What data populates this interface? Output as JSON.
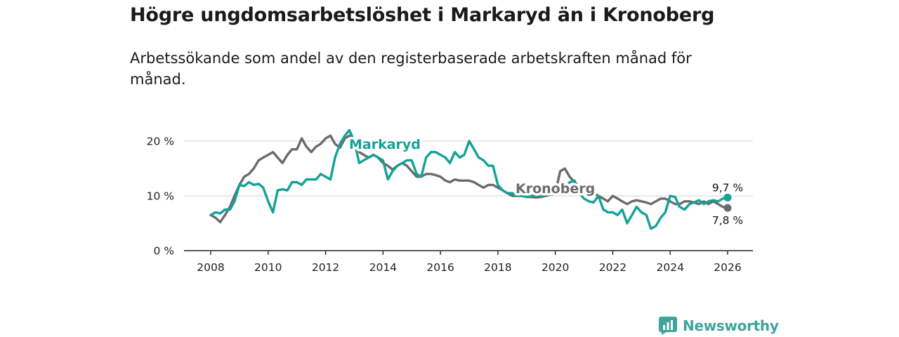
{
  "title": "Högre ungdomsarbetslöshet i Markaryd än i Kronoberg",
  "subtitle": "Arbetssökande som andel av den registerbaserade arbetskraften månad för månad.",
  "brand": "Newsworthy",
  "colors": {
    "markaryd": "#13a297",
    "kronoberg": "#6b6a6e",
    "grid": "#dcdcdc",
    "axis": "#222222",
    "brand": "#3ea59b"
  },
  "chart_data": {
    "type": "line",
    "title": "Högre ungdomsarbetslöshet i Markaryd än i Kronoberg",
    "xlabel": "",
    "ylabel": "",
    "xlim": [
      2007.5,
      2026.7
    ],
    "ylim": [
      0,
      20
    ],
    "x_ticks": [
      2008,
      2010,
      2012,
      2014,
      2016,
      2018,
      2020,
      2022,
      2024,
      2026
    ],
    "x_tick_labels": [
      "2008",
      "2010",
      "2012",
      "2014",
      "2016",
      "2018",
      "2020",
      "2022",
      "2024",
      "2026"
    ],
    "y_ticks": [
      0,
      10,
      20
    ],
    "y_tick_labels": [
      "0 %",
      "10 %",
      "20 %"
    ],
    "grid": true,
    "series": [
      {
        "name": "Markaryd",
        "label": "Markaryd",
        "end_label": "9,7 %",
        "x": [
          2008.0,
          2008.17,
          2008.33,
          2008.5,
          2008.67,
          2008.83,
          2009.0,
          2009.17,
          2009.33,
          2009.5,
          2009.67,
          2009.83,
          2010.0,
          2010.17,
          2010.33,
          2010.5,
          2010.67,
          2010.83,
          2011.0,
          2011.17,
          2011.33,
          2011.5,
          2011.67,
          2011.83,
          2012.0,
          2012.17,
          2012.33,
          2012.5,
          2012.67,
          2012.83,
          2013.0,
          2013.17,
          2013.33,
          2013.5,
          2013.67,
          2013.83,
          2014.0,
          2014.17,
          2014.33,
          2014.5,
          2014.67,
          2014.83,
          2015.0,
          2015.17,
          2015.33,
          2015.5,
          2015.67,
          2015.83,
          2016.0,
          2016.17,
          2016.33,
          2016.5,
          2016.67,
          2016.83,
          2017.0,
          2017.17,
          2017.33,
          2017.5,
          2017.67,
          2017.83,
          2018.0,
          2018.17,
          2018.33,
          2018.5,
          2018.67,
          2018.83,
          2019.0,
          2019.17,
          2019.33,
          2019.5,
          2019.67,
          2019.83,
          2020.0,
          2020.17,
          2020.33,
          2020.5,
          2020.67,
          2020.83,
          2021.0,
          2021.17,
          2021.33,
          2021.5,
          2021.67,
          2021.83,
          2022.0,
          2022.17,
          2022.33,
          2022.5,
          2022.67,
          2022.83,
          2023.0,
          2023.17,
          2023.33,
          2023.5,
          2023.67,
          2023.83,
          2024.0,
          2024.17,
          2024.33,
          2024.5,
          2024.67,
          2024.83,
          2025.0,
          2025.17,
          2025.33,
          2025.5,
          2025.67,
          2025.83,
          2026.0
        ],
        "values": [
          6.5,
          7.0,
          6.8,
          7.5,
          7.5,
          9.0,
          12.0,
          11.8,
          12.5,
          12.0,
          12.2,
          11.5,
          9.0,
          7.0,
          11.0,
          11.2,
          11.0,
          12.5,
          12.5,
          12.0,
          13.0,
          13.0,
          13.0,
          14.0,
          13.5,
          13.0,
          17.0,
          19.5,
          21.0,
          22.0,
          20.0,
          16.0,
          16.5,
          17.0,
          17.5,
          17.0,
          16.5,
          13.0,
          14.5,
          15.5,
          16.0,
          16.5,
          16.5,
          14.0,
          13.5,
          17.0,
          18.0,
          18.0,
          17.5,
          17.0,
          16.0,
          18.0,
          17.0,
          17.5,
          20.0,
          18.5,
          17.0,
          16.5,
          15.5,
          15.5,
          12.0,
          11.0,
          10.5,
          10.5,
          10.0,
          10.0,
          9.8,
          10.0,
          10.2,
          10.0,
          10.2,
          10.5,
          10.8,
          11.0,
          11.5,
          12.5,
          12.8,
          10.5,
          9.5,
          9.0,
          8.8,
          10.0,
          7.5,
          7.0,
          7.0,
          6.5,
          7.5,
          5.0,
          6.5,
          8.0,
          7.0,
          6.5,
          4.0,
          4.5,
          6.0,
          7.0,
          10.0,
          9.8,
          8.0,
          7.5,
          8.5,
          8.8,
          9.2,
          8.5,
          9.0,
          9.2,
          9.0,
          9.5,
          9.7
        ]
      },
      {
        "name": "Kronoberg",
        "label": "Kronoberg",
        "end_label": "7,8 %",
        "x": [
          2008.0,
          2008.17,
          2008.33,
          2008.5,
          2008.67,
          2008.83,
          2009.0,
          2009.17,
          2009.33,
          2009.5,
          2009.67,
          2009.83,
          2010.0,
          2010.17,
          2010.33,
          2010.5,
          2010.67,
          2010.83,
          2011.0,
          2011.17,
          2011.33,
          2011.5,
          2011.67,
          2011.83,
          2012.0,
          2012.17,
          2012.33,
          2012.5,
          2012.67,
          2012.83,
          2013.0,
          2013.17,
          2013.33,
          2013.5,
          2013.67,
          2013.83,
          2014.0,
          2014.17,
          2014.33,
          2014.5,
          2014.67,
          2014.83,
          2015.0,
          2015.17,
          2015.33,
          2015.5,
          2015.67,
          2015.83,
          2016.0,
          2016.17,
          2016.33,
          2016.5,
          2016.67,
          2016.83,
          2017.0,
          2017.17,
          2017.33,
          2017.5,
          2017.67,
          2017.83,
          2018.0,
          2018.17,
          2018.33,
          2018.5,
          2018.67,
          2018.83,
          2019.0,
          2019.17,
          2019.33,
          2019.5,
          2019.67,
          2019.83,
          2020.0,
          2020.17,
          2020.33,
          2020.5,
          2020.67,
          2020.83,
          2021.0,
          2021.17,
          2021.33,
          2021.5,
          2021.67,
          2021.83,
          2022.0,
          2022.17,
          2022.33,
          2022.5,
          2022.67,
          2022.83,
          2023.0,
          2023.17,
          2023.33,
          2023.5,
          2023.67,
          2023.83,
          2024.0,
          2024.17,
          2024.33,
          2024.5,
          2024.67,
          2024.83,
          2025.0,
          2025.17,
          2025.33,
          2025.5,
          2025.67,
          2025.83,
          2026.0
        ],
        "values": [
          6.5,
          6.0,
          5.2,
          6.5,
          8.0,
          10.0,
          12.0,
          13.5,
          14.0,
          15.0,
          16.5,
          17.0,
          17.5,
          18.0,
          17.0,
          16.0,
          17.5,
          18.5,
          18.5,
          20.5,
          19.0,
          18.0,
          19.0,
          19.5,
          20.5,
          21.0,
          19.5,
          18.8,
          20.5,
          21.0,
          19.5,
          18.0,
          17.5,
          17.0,
          17.5,
          17.0,
          16.0,
          15.5,
          14.8,
          15.5,
          16.0,
          15.5,
          14.5,
          13.5,
          13.5,
          14.0,
          14.0,
          13.8,
          13.5,
          12.8,
          12.5,
          13.0,
          12.8,
          12.8,
          12.8,
          12.5,
          12.0,
          11.5,
          12.0,
          12.0,
          11.5,
          11.0,
          10.5,
          10.0,
          10.0,
          10.0,
          9.8,
          9.8,
          9.7,
          9.8,
          10.0,
          10.2,
          10.5,
          14.5,
          15.0,
          13.5,
          12.5,
          11.8,
          11.5,
          11.0,
          10.5,
          10.0,
          9.5,
          9.0,
          10.0,
          9.5,
          9.0,
          8.5,
          9.0,
          9.2,
          9.0,
          8.8,
          8.5,
          9.0,
          9.5,
          9.5,
          9.0,
          8.5,
          8.5,
          9.0,
          9.0,
          8.8,
          8.5,
          9.0,
          8.5,
          9.0,
          8.5,
          8.0,
          7.8
        ]
      }
    ]
  }
}
